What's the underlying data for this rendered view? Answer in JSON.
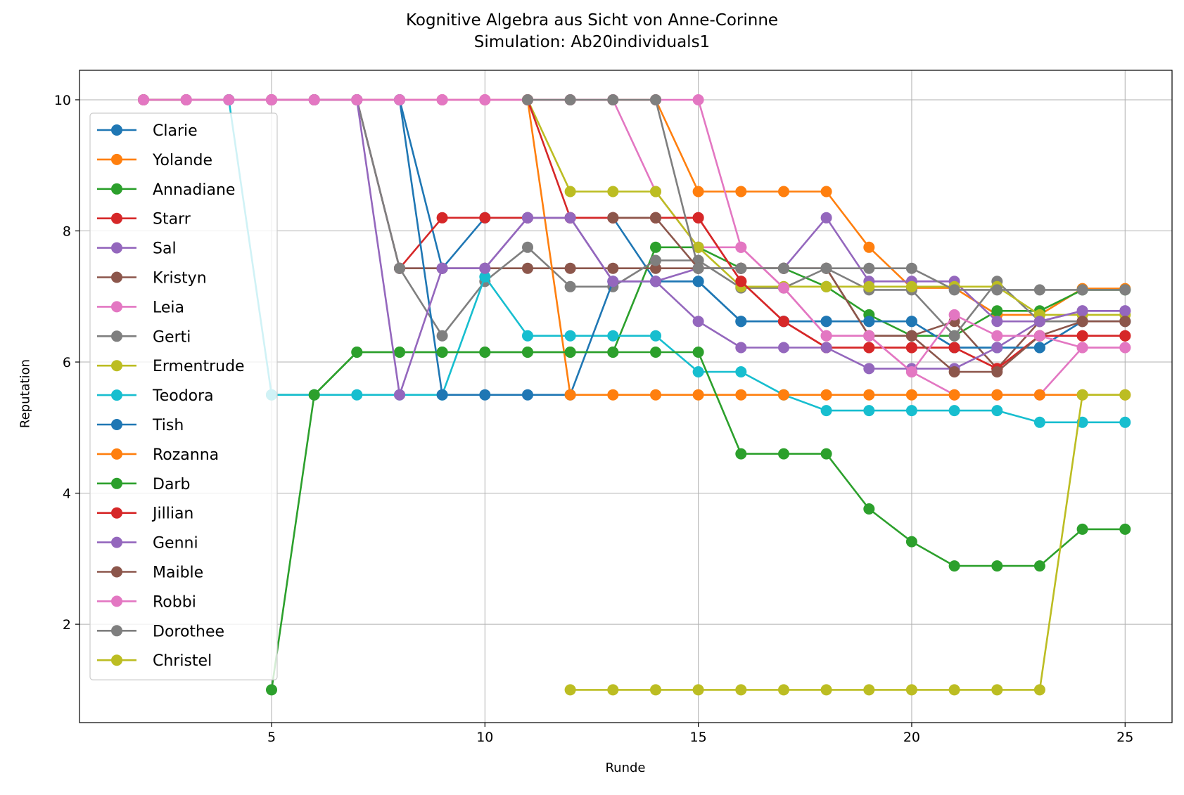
{
  "chart_data": {
    "type": "line",
    "title": "Kognitive Algebra aus Sicht von Anne-Corinne",
    "subtitle": "Simulation: Ab20individuals1",
    "xlabel": "Runde",
    "ylabel": "Reputation",
    "xlim": [
      0.5,
      26.1
    ],
    "ylim": [
      0.5,
      10.45
    ],
    "xticks": [
      5,
      10,
      15,
      20,
      25
    ],
    "yticks": [
      2,
      4,
      6,
      8,
      10
    ],
    "grid": true,
    "legend_position": "upper-left",
    "series": [
      {
        "name": "Clarie",
        "color": "#1f77b4",
        "x": [
          2,
          3,
          4,
          5,
          6,
          7,
          8,
          9,
          10,
          11,
          12,
          13,
          14,
          15,
          16,
          17,
          18,
          19,
          20,
          21,
          22,
          23,
          24,
          25
        ],
        "y": [
          10,
          10,
          10,
          10,
          10,
          10,
          10,
          7.43,
          8.2,
          8.2,
          8.2,
          8.2,
          7.23,
          7.23,
          6.62,
          6.62,
          6.62,
          6.62,
          6.62,
          6.22,
          6.22,
          6.22,
          6.62,
          6.62
        ]
      },
      {
        "name": "Yolande",
        "color": "#ff7f0e",
        "x": [
          2,
          3,
          4,
          5,
          6,
          7,
          8,
          9,
          10,
          11,
          12,
          13,
          14,
          15,
          16,
          17,
          18,
          19,
          20,
          21,
          22,
          23,
          24,
          25
        ],
        "y": [
          10,
          10,
          10,
          10,
          10,
          10,
          10,
          10,
          10,
          10,
          10,
          10,
          10,
          8.6,
          8.6,
          8.6,
          8.6,
          7.75,
          7.13,
          7.13,
          6.72,
          6.72,
          7.12,
          7.12
        ]
      },
      {
        "name": "Annadiane",
        "color": "#2ca02c",
        "x": [
          5,
          6,
          7,
          8,
          9,
          10,
          11,
          12,
          13,
          14,
          15,
          16,
          17,
          18,
          19,
          20,
          21,
          22,
          23,
          24,
          25
        ],
        "y": [
          5.5,
          5.5,
          6.15,
          6.15,
          6.15,
          6.15,
          6.15,
          6.15,
          6.15,
          7.75,
          7.75,
          7.43,
          7.43,
          7.15,
          6.72,
          6.4,
          6.4,
          6.78,
          6.78,
          7.1,
          7.1
        ]
      },
      {
        "name": "Starr",
        "color": "#d62728",
        "x": [
          8,
          9,
          10,
          11,
          12,
          13,
          14,
          15,
          16,
          17,
          18,
          19,
          20,
          21,
          22,
          23,
          24,
          25
        ],
        "y": [
          7.43,
          8.2,
          8.2,
          8.2,
          8.2,
          8.2,
          8.2,
          8.2,
          7.23,
          6.62,
          6.22,
          6.22,
          6.22,
          6.22,
          5.9,
          6.4,
          6.4,
          6.4
        ]
      },
      {
        "name": "Sal",
        "color": "#9467bd",
        "x": [
          3,
          4,
          5,
          6,
          7,
          8,
          9,
          10,
          11,
          12,
          13,
          14,
          15,
          16,
          17,
          18,
          19,
          20,
          21,
          22,
          23,
          24,
          25
        ],
        "y": [
          10,
          10,
          10,
          10,
          10,
          7.43,
          7.43,
          7.43,
          8.2,
          8.2,
          7.23,
          7.23,
          7.43,
          7.43,
          7.43,
          8.2,
          7.23,
          7.23,
          7.23,
          6.62,
          6.62,
          6.78,
          6.78
        ]
      },
      {
        "name": "Kristyn",
        "color": "#8c564b",
        "x": [
          2,
          3,
          4,
          5,
          6,
          7,
          8,
          9,
          10,
          11,
          12,
          13,
          14,
          15,
          16,
          17,
          18,
          19,
          20,
          21,
          22,
          23,
          24,
          25
        ],
        "y": [
          10,
          10,
          10,
          10,
          10,
          10,
          7.43,
          7.43,
          7.43,
          7.43,
          7.43,
          7.43,
          7.43,
          7.43,
          7.43,
          7.43,
          7.43,
          6.4,
          6.4,
          6.62,
          5.9,
          6.62,
          6.62,
          6.62
        ]
      },
      {
        "name": "Leia",
        "color": "#e377c2",
        "x": [
          2,
          3,
          4,
          5,
          6,
          7,
          8,
          9,
          10,
          11,
          12,
          13,
          14,
          15,
          16,
          17,
          18,
          19,
          20,
          21,
          22,
          23,
          24,
          25
        ],
        "y": [
          10,
          10,
          10,
          10,
          10,
          10,
          10,
          10,
          10,
          10,
          10,
          10,
          8.6,
          7.75,
          7.75,
          7.13,
          6.4,
          6.4,
          5.85,
          5.5,
          5.5,
          5.5,
          6.22,
          6.22
        ]
      },
      {
        "name": "Gerti",
        "color": "#7f7f7f",
        "x": [
          6,
          7,
          8,
          9,
          10,
          11,
          12,
          13,
          14,
          15,
          16,
          17,
          18,
          19,
          20,
          21,
          22,
          23,
          24,
          25
        ],
        "y": [
          10,
          10,
          7.43,
          6.4,
          7.23,
          7.75,
          7.15,
          7.15,
          7.55,
          7.55,
          7.13,
          7.13,
          7.43,
          7.1,
          7.1,
          6.4,
          7.23,
          6.62,
          6.62,
          6.62
        ]
      },
      {
        "name": "Ermentrude",
        "color": "#bcbd22",
        "x": [
          11,
          12,
          13,
          14,
          15,
          16,
          17,
          18,
          19,
          20,
          21,
          22,
          23,
          24,
          25
        ],
        "y": [
          10,
          8.6,
          8.6,
          8.6,
          7.75,
          7.15,
          7.15,
          7.15,
          7.15,
          7.15,
          7.15,
          7.15,
          6.72,
          6.72,
          6.72
        ]
      },
      {
        "name": "Teodora",
        "color": "#17becf",
        "x": [
          4,
          5,
          6,
          7,
          8,
          9,
          10,
          11,
          12,
          13,
          14,
          15,
          16,
          17,
          18,
          19,
          20,
          21,
          22,
          23,
          24,
          25
        ],
        "y": [
          10,
          5.5,
          5.5,
          5.5,
          5.5,
          5.5,
          7.3,
          6.4,
          6.4,
          6.4,
          6.4,
          5.85,
          5.85,
          5.5,
          5.26,
          5.26,
          5.26,
          5.26,
          5.26,
          5.08,
          5.08,
          5.08
        ]
      },
      {
        "name": "Tish",
        "color": "#1f77b4",
        "x": [
          8,
          9,
          10,
          11,
          12,
          13,
          14,
          15,
          16,
          17,
          18,
          19,
          20,
          21,
          22,
          23
        ],
        "y": [
          10,
          5.5,
          5.5,
          5.5,
          5.5,
          7.23,
          7.23,
          7.23,
          6.62,
          6.62,
          6.62,
          6.62,
          6.62,
          6.22,
          6.22,
          6.22
        ]
      },
      {
        "name": "Rozanna",
        "color": "#ff7f0e",
        "x": [
          11,
          12,
          13,
          14,
          15,
          16,
          17,
          18,
          19,
          20,
          21,
          22,
          23,
          24,
          25
        ],
        "y": [
          10,
          5.5,
          5.5,
          5.5,
          5.5,
          5.5,
          5.5,
          5.5,
          5.5,
          5.5,
          5.5,
          5.5,
          5.5,
          5.5,
          5.5
        ]
      },
      {
        "name": "Darb",
        "color": "#2ca02c",
        "x": [
          5,
          6,
          7,
          8,
          9,
          10,
          11,
          12,
          13,
          14,
          15,
          16,
          17,
          18,
          19,
          20,
          21,
          22,
          23,
          24,
          25
        ],
        "y": [
          1,
          5.5,
          6.15,
          6.15,
          6.15,
          6.15,
          6.15,
          6.15,
          6.15,
          6.15,
          6.15,
          4.6,
          4.6,
          4.6,
          3.76,
          3.26,
          2.89,
          2.89,
          2.89,
          3.45,
          3.45
        ]
      },
      {
        "name": "Jillian",
        "color": "#d62728",
        "x": [
          11,
          12,
          13,
          14,
          15,
          16,
          17,
          18,
          19,
          20,
          21,
          22,
          23,
          24,
          25
        ],
        "y": [
          10,
          8.2,
          8.2,
          8.2,
          8.2,
          7.23,
          6.62,
          6.22,
          6.22,
          6.22,
          6.22,
          5.9,
          6.4,
          6.4,
          6.4
        ]
      },
      {
        "name": "Genni",
        "color": "#9467bd",
        "x": [
          7,
          8,
          9,
          10,
          11,
          12,
          13,
          14,
          15,
          16,
          17,
          18,
          19,
          20,
          21,
          22,
          23,
          24,
          25
        ],
        "y": [
          10,
          5.5,
          7.43,
          7.43,
          8.2,
          8.2,
          7.23,
          7.23,
          6.62,
          6.22,
          6.22,
          6.22,
          5.9,
          5.9,
          5.9,
          6.22,
          6.62,
          6.78,
          6.78
        ]
      },
      {
        "name": "Maible",
        "color": "#8c564b",
        "x": [
          13,
          14,
          15,
          16,
          17,
          18,
          19,
          20,
          21,
          22,
          23,
          24,
          25
        ],
        "y": [
          8.2,
          8.2,
          7.43,
          7.43,
          7.43,
          7.43,
          6.4,
          6.4,
          5.85,
          5.85,
          6.4,
          6.62,
          6.62
        ]
      },
      {
        "name": "Robbi",
        "color": "#e377c2",
        "x": [
          3,
          4,
          5,
          6,
          7,
          8,
          9,
          10,
          11,
          12,
          13,
          14,
          15,
          16,
          17,
          18,
          19,
          20,
          21,
          22,
          23,
          24,
          25
        ],
        "y": [
          10,
          10,
          10,
          10,
          10,
          10,
          10,
          10,
          10,
          10,
          10,
          10,
          10,
          7.75,
          7.13,
          6.4,
          6.4,
          5.85,
          6.72,
          6.4,
          6.4,
          6.22,
          6.22
        ]
      },
      {
        "name": "Dorothee",
        "color": "#7f7f7f",
        "x": [
          11,
          12,
          13,
          14,
          15,
          16,
          17,
          18,
          19,
          20,
          21,
          22,
          23,
          24,
          25
        ],
        "y": [
          10,
          10,
          10,
          10,
          7.43,
          7.43,
          7.43,
          7.43,
          7.43,
          7.43,
          7.1,
          7.1,
          7.1,
          7.1,
          7.1
        ]
      },
      {
        "name": "Christel",
        "color": "#bcbd22",
        "x": [
          12,
          13,
          14,
          15,
          16,
          17,
          18,
          19,
          20,
          21,
          22,
          23,
          24,
          25
        ],
        "y": [
          1,
          1,
          1,
          1,
          1,
          1,
          1,
          1,
          1,
          1,
          1,
          1,
          5.5,
          5.5
        ]
      }
    ]
  }
}
